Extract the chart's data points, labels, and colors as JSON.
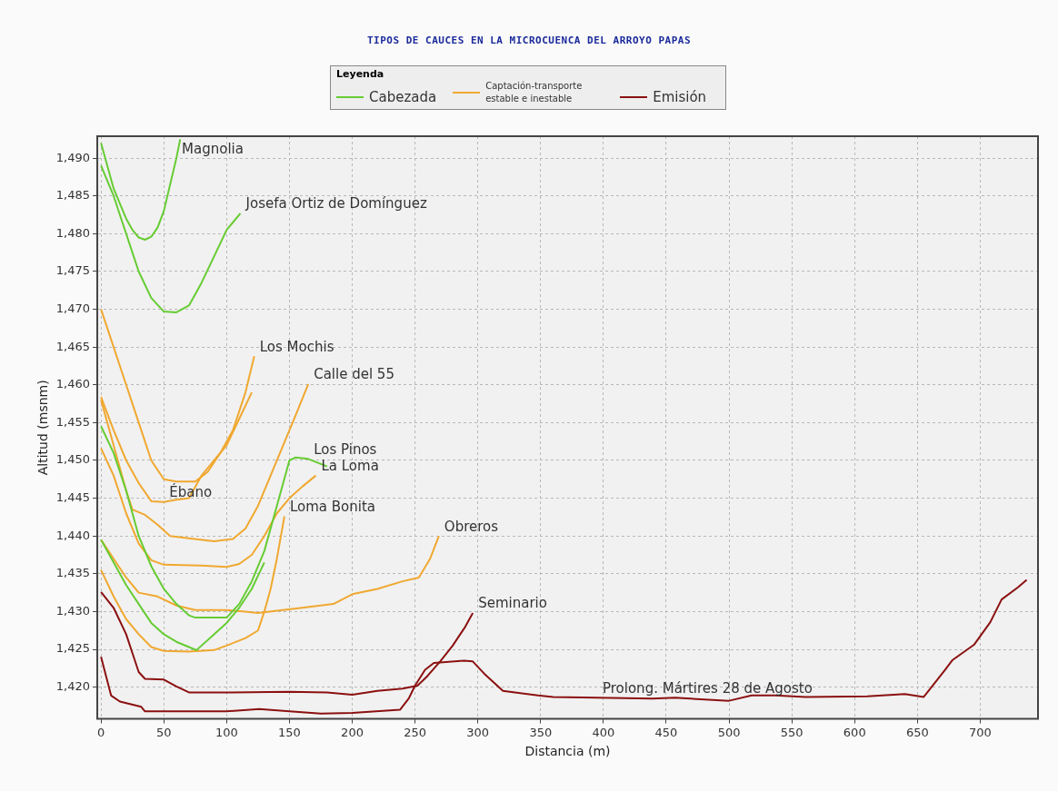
{
  "chart_data": {
    "type": "line",
    "title": "TIPOS DE CAUCES EN LA MICROCUENCA DEL ARROYO PAPAS",
    "xlabel": "Distancia (m)",
    "ylabel": "Altitud (msnm)",
    "legend_title": "Leyenda",
    "legend": "top",
    "grid": true,
    "marker": "none",
    "line_style": "solid",
    "xlim": [
      -3,
      746
    ],
    "xticks": [
      0,
      50,
      100,
      150,
      200,
      250,
      300,
      350,
      400,
      450,
      500,
      550,
      600,
      650,
      700
    ],
    "ylim": [
      1415.8,
      1492.9
    ],
    "yticks": [
      {
        "value": 1420,
        "label": "1,420"
      },
      {
        "value": 1425,
        "label": "1,425"
      },
      {
        "value": 1430,
        "label": "1,430"
      },
      {
        "value": 1435,
        "label": "1,435"
      },
      {
        "value": 1440,
        "label": "1,440"
      },
      {
        "value": 1445,
        "label": "1,445"
      },
      {
        "value": 1450,
        "label": "1,450"
      },
      {
        "value": 1455,
        "label": "1,455"
      },
      {
        "value": 1460,
        "label": "1,460"
      },
      {
        "value": 1465,
        "label": "1,465"
      },
      {
        "value": 1470,
        "label": "1,470"
      },
      {
        "value": 1475,
        "label": "1,475"
      },
      {
        "value": 1480,
        "label": "1,480"
      },
      {
        "value": 1485,
        "label": "1,485"
      },
      {
        "value": 1490,
        "label": "1,490"
      }
    ],
    "series": [
      {
        "name": "Cabezada",
        "color": "#66cc33",
        "x": [
          0,
          5,
          10,
          15,
          20,
          25,
          30,
          35,
          40,
          45,
          50,
          55,
          60,
          63
        ],
        "values": [
          1492,
          1489,
          1486,
          1484,
          1482,
          1480.5,
          1479.5,
          1479.2,
          1479.6,
          1480.8,
          1483,
          1486.5,
          1490,
          1492.5
        ]
      },
      {
        "color": "#66cc33",
        "x": [
          0,
          10,
          20,
          30,
          40,
          50,
          60,
          70,
          80,
          90,
          100,
          111
        ],
        "values": [
          1489,
          1485,
          1480,
          1475,
          1471.5,
          1469.7,
          1469.6,
          1470.5,
          1473.5,
          1477,
          1480.5,
          1482.7
        ]
      },
      {
        "color": "#66cc33",
        "x": [
          0,
          10,
          20,
          30,
          40,
          50,
          60,
          70,
          75,
          100,
          110,
          120,
          130,
          140,
          150,
          155,
          165,
          180
        ],
        "values": [
          1454.5,
          1451,
          1446,
          1440,
          1436,
          1433,
          1431,
          1429.5,
          1429.2,
          1429.2,
          1431,
          1434,
          1438,
          1444,
          1450,
          1450.4,
          1450.2,
          1449.2
        ]
      },
      {
        "color": "#66cc33",
        "x": [
          0,
          10,
          20,
          30,
          40,
          50,
          60,
          70,
          76,
          90,
          100,
          110,
          120,
          130
        ],
        "values": [
          1439.5,
          1436.5,
          1433.5,
          1431,
          1428.5,
          1427,
          1426,
          1425.3,
          1424.9,
          1427,
          1428.5,
          1430.5,
          1433,
          1436.5
        ]
      },
      {
        "name": "Captación-transporte estable e inestable",
        "color": "#f0a830",
        "x": [
          0,
          10,
          20,
          30,
          40,
          50,
          60,
          75,
          85,
          95,
          105,
          115,
          122
        ],
        "values": [
          1470,
          1465,
          1460,
          1455,
          1450,
          1447.5,
          1447.2,
          1447.2,
          1448.5,
          1451,
          1454,
          1459,
          1463.8
        ]
      },
      {
        "color": "#f0a830",
        "x": [
          0,
          10,
          20,
          30,
          40,
          50,
          60,
          70,
          80,
          90,
          100,
          110,
          120
        ],
        "values": [
          1458.4,
          1454,
          1450,
          1447,
          1444.6,
          1444.5,
          1444.8,
          1445,
          1448,
          1450,
          1452,
          1455.5,
          1459
        ]
      },
      {
        "color": "#f0a830",
        "x": [
          0,
          10,
          20,
          25,
          35,
          45,
          55,
          70,
          90,
          105,
          115,
          125,
          135,
          145,
          155,
          165
        ],
        "values": [
          1458,
          1452,
          1446,
          1443.5,
          1442.8,
          1441.5,
          1440,
          1439.7,
          1439.3,
          1439.6,
          1441,
          1444,
          1448,
          1452,
          1456,
          1460.1
        ]
      },
      {
        "color": "#f0a830",
        "x": [
          0,
          10,
          20,
          30,
          40,
          50,
          80,
          100,
          110,
          120,
          130,
          140,
          150,
          160,
          171
        ],
        "values": [
          1451.6,
          1448,
          1443,
          1439,
          1436.8,
          1436.2,
          1436.1,
          1435.9,
          1436.3,
          1437.5,
          1440,
          1443,
          1445,
          1446.5,
          1448
        ]
      },
      {
        "color": "#f0a830",
        "x": [
          0,
          10,
          20,
          30,
          40,
          50,
          70,
          90,
          100,
          115,
          125,
          130,
          135,
          140,
          146
        ],
        "values": [
          1435.5,
          1432,
          1429,
          1427,
          1425.3,
          1424.8,
          1424.7,
          1424.9,
          1425.5,
          1426.5,
          1427.5,
          1430,
          1433,
          1437,
          1442.6
        ]
      },
      {
        "color": "#f0a830",
        "x": [
          0,
          10,
          20,
          30,
          45,
          60,
          75,
          100,
          115,
          125,
          140,
          160,
          185,
          200,
          220,
          240,
          253,
          262,
          269
        ],
        "values": [
          1439.5,
          1437,
          1434.5,
          1432.5,
          1432,
          1430.8,
          1430.2,
          1430.2,
          1430,
          1429.8,
          1430.1,
          1430.5,
          1431,
          1432.3,
          1433,
          1434,
          1434.5,
          1437,
          1440
        ]
      },
      {
        "name": "Emisión",
        "color": "#8b1010",
        "x": [
          0,
          10,
          20,
          25,
          30,
          35,
          50,
          60,
          70,
          100,
          150,
          180,
          200,
          220,
          240,
          252,
          260,
          270,
          280,
          290,
          296
        ],
        "values": [
          1432.6,
          1430.5,
          1427,
          1424.5,
          1422,
          1421.1,
          1421,
          1420.1,
          1419.3,
          1419.3,
          1419.4,
          1419.3,
          1419,
          1419.5,
          1419.8,
          1420.2,
          1421.5,
          1423.4,
          1425.5,
          1428,
          1429.8
        ]
      },
      {
        "color": "#8b1010",
        "x": [
          0,
          8,
          15,
          32,
          35,
          100,
          126,
          150,
          175,
          200,
          238,
          245,
          250,
          258,
          265,
          289,
          296,
          305,
          320,
          348,
          360,
          395,
          439,
          457,
          500,
          518,
          537,
          561,
          610,
          640,
          655,
          672,
          678,
          695,
          708,
          717,
          730,
          737
        ],
        "values": [
          1424,
          1418.9,
          1418.1,
          1417.4,
          1416.8,
          1416.8,
          1417.1,
          1416.8,
          1416.5,
          1416.6,
          1417,
          1418.5,
          1420.2,
          1422.3,
          1423.2,
          1423.5,
          1423.4,
          1421.8,
          1419.5,
          1418.9,
          1418.7,
          1418.6,
          1418.5,
          1418.6,
          1418.2,
          1418.9,
          1418.9,
          1418.7,
          1418.8,
          1419.1,
          1418.7,
          1422.3,
          1423.6,
          1425.6,
          1428.6,
          1431.6,
          1433.2,
          1434.2
        ]
      }
    ],
    "annotations": [
      {
        "text": "Magnolia",
        "x": 60,
        "y": 1490
      },
      {
        "text": "Josefa Ortiz de Domínguez",
        "x": 111,
        "y": 1482.7
      },
      {
        "text": "Los Mochis",
        "x": 122,
        "y": 1463.8
      },
      {
        "text": "Calle del 55",
        "x": 165,
        "y": 1460.1
      },
      {
        "text": "Los Pinos",
        "x": 165,
        "y": 1450.2
      },
      {
        "text": "Ébano",
        "x": 50,
        "y": 1444.5
      },
      {
        "text": "La Loma",
        "x": 171,
        "y": 1448
      },
      {
        "text": "Loma Bonita",
        "x": 146,
        "y": 1442.6
      },
      {
        "text": "Obreros",
        "x": 269,
        "y": 1440
      },
      {
        "text": "Seminario",
        "x": 296,
        "y": 1429.8
      },
      {
        "text": "Prolong. Mártires 28 de Agosto",
        "x": 395,
        "y": 1418.6
      }
    ]
  }
}
